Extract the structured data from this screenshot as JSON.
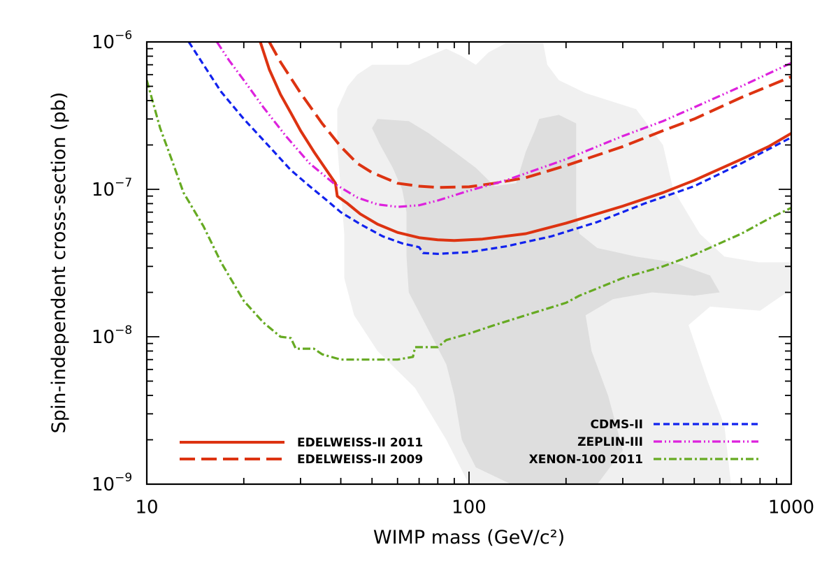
{
  "chart_data": {
    "type": "line",
    "title": "",
    "xlabel": "WIMP mass (GeV/c²)",
    "ylabel": "Spin-independent cross-section (pb)",
    "xscale": "log",
    "yscale": "log",
    "xlim": [
      10,
      1000
    ],
    "ylim": [
      1e-09,
      1e-06
    ],
    "x_ticks": [
      {
        "value": 10,
        "label": "10"
      },
      {
        "value": 100,
        "label": "100"
      },
      {
        "value": 1000,
        "label": "1000"
      }
    ],
    "y_ticks": [
      {
        "value": 1e-09,
        "base": "10",
        "exp": "−9"
      },
      {
        "value": 1e-08,
        "base": "10",
        "exp": "−8"
      },
      {
        "value": 1e-07,
        "base": "10",
        "exp": "−7"
      },
      {
        "value": 1e-06,
        "base": "10",
        "exp": "−6"
      }
    ],
    "regions": [
      {
        "name": "outer-contour",
        "color": "#f0f0f0",
        "points": [
          [
            50,
            7e-07
          ],
          [
            45,
            6e-07
          ],
          [
            42,
            5e-07
          ],
          [
            39,
            3.5e-07
          ],
          [
            39,
            2e-07
          ],
          [
            40,
            1e-07
          ],
          [
            41,
            5e-08
          ],
          [
            41,
            2.5e-08
          ],
          [
            44,
            1.4e-08
          ],
          [
            52,
            8e-09
          ],
          [
            68,
            4.5e-09
          ],
          [
            85,
            2e-09
          ],
          [
            100,
            1e-09
          ],
          [
            650,
            1e-09
          ],
          [
            620,
            2.5e-09
          ],
          [
            550,
            5e-09
          ],
          [
            480,
            1.2e-08
          ],
          [
            560,
            1.6e-08
          ],
          [
            800,
            1.5e-08
          ],
          [
            1000,
            2.1e-08
          ],
          [
            1000,
            3.2e-08
          ],
          [
            790,
            3.2e-08
          ],
          [
            620,
            3.5e-08
          ],
          [
            520,
            5e-08
          ],
          [
            430,
            1e-07
          ],
          [
            400,
            2e-07
          ],
          [
            330,
            3.5e-07
          ],
          [
            230,
            4.5e-07
          ],
          [
            190,
            5.5e-07
          ],
          [
            175,
            7e-07
          ],
          [
            170,
            9.8e-07
          ],
          [
            130,
            9.8e-07
          ],
          [
            115,
            8.5e-07
          ],
          [
            105,
            7e-07
          ],
          [
            95,
            8e-07
          ],
          [
            85,
            9e-07
          ],
          [
            75,
            8e-07
          ],
          [
            65,
            7e-07
          ]
        ]
      },
      {
        "name": "inner-contour",
        "color": "#dedede",
        "points": [
          [
            52,
            3e-07
          ],
          [
            50,
            2.6e-07
          ],
          [
            53,
            2e-07
          ],
          [
            58,
            1.4e-07
          ],
          [
            62,
            1e-07
          ],
          [
            64,
            7e-08
          ],
          [
            64,
            3.5e-08
          ],
          [
            65,
            2e-08
          ],
          [
            75,
            1.1e-08
          ],
          [
            85,
            6.5e-09
          ],
          [
            90,
            4e-09
          ],
          [
            95,
            2e-09
          ],
          [
            105,
            1.3e-09
          ],
          [
            135,
            1e-09
          ],
          [
            250,
            1e-09
          ],
          [
            300,
            1.7e-09
          ],
          [
            270,
            4e-09
          ],
          [
            240,
            8e-09
          ],
          [
            230,
            1.4e-08
          ],
          [
            280,
            1.8e-08
          ],
          [
            370,
            2e-08
          ],
          [
            500,
            1.9e-08
          ],
          [
            600,
            2e-08
          ],
          [
            560,
            2.6e-08
          ],
          [
            430,
            3.2e-08
          ],
          [
            330,
            3.5e-08
          ],
          [
            250,
            4e-08
          ],
          [
            220,
            5e-08
          ],
          [
            215,
            7e-08
          ],
          [
            215,
            1.2e-07
          ],
          [
            215,
            2e-07
          ],
          [
            215,
            2.8e-07
          ],
          [
            190,
            3.2e-07
          ],
          [
            165,
            3e-07
          ],
          [
            160,
            2.5e-07
          ],
          [
            150,
            1.8e-07
          ],
          [
            140,
            1.1e-07
          ],
          [
            120,
            1.05e-07
          ],
          [
            105,
            1.4e-07
          ],
          [
            90,
            1.8e-07
          ],
          [
            75,
            2.4e-07
          ],
          [
            65,
            2.9e-07
          ]
        ]
      }
    ],
    "series": [
      {
        "name": "EDELWEISS-II 2011",
        "color": "#dd3311",
        "dash": "solid",
        "legend_column": "left",
        "points": [
          [
            22.5,
            1e-06
          ],
          [
            24,
            6.5e-07
          ],
          [
            26,
            4.4e-07
          ],
          [
            28,
            3.3e-07
          ],
          [
            30,
            2.5e-07
          ],
          [
            33,
            1.8e-07
          ],
          [
            37,
            1.25e-07
          ],
          [
            38.5,
            1.1e-07
          ],
          [
            39,
            9e-08
          ],
          [
            42,
            8e-08
          ],
          [
            46,
            6.8e-08
          ],
          [
            52,
            5.8e-08
          ],
          [
            60,
            5.1e-08
          ],
          [
            70,
            4.7e-08
          ],
          [
            80,
            4.55e-08
          ],
          [
            90,
            4.5e-08
          ],
          [
            110,
            4.6e-08
          ],
          [
            150,
            5e-08
          ],
          [
            200,
            5.9e-08
          ],
          [
            300,
            7.7e-08
          ],
          [
            400,
            9.5e-08
          ],
          [
            500,
            1.15e-07
          ],
          [
            700,
            1.6e-07
          ],
          [
            850,
            1.95e-07
          ],
          [
            1000,
            2.4e-07
          ]
        ]
      },
      {
        "name": "EDELWEISS-II 2009",
        "color": "#dd3311",
        "dash": "dashed",
        "legend_column": "left",
        "points": [
          [
            24,
            1e-06
          ],
          [
            26,
            7.3e-07
          ],
          [
            30,
            4.5e-07
          ],
          [
            35,
            2.8e-07
          ],
          [
            40,
            1.95e-07
          ],
          [
            45,
            1.5e-07
          ],
          [
            50,
            1.3e-07
          ],
          [
            60,
            1.1e-07
          ],
          [
            70,
            1.05e-07
          ],
          [
            80,
            1.03e-07
          ],
          [
            100,
            1.04e-07
          ],
          [
            120,
            1.1e-07
          ],
          [
            150,
            1.2e-07
          ],
          [
            200,
            1.45e-07
          ],
          [
            300,
            1.95e-07
          ],
          [
            400,
            2.5e-07
          ],
          [
            500,
            3e-07
          ],
          [
            700,
            4.2e-07
          ],
          [
            1000,
            5.8e-07
          ]
        ]
      },
      {
        "name": "CDMS-II",
        "color": "#1122ee",
        "dash": "short-dashed",
        "legend_column": "right",
        "points": [
          [
            13.5,
            1e-06
          ],
          [
            15,
            7e-07
          ],
          [
            17,
            4.6e-07
          ],
          [
            20,
            3e-07
          ],
          [
            24,
            1.95e-07
          ],
          [
            28,
            1.35e-07
          ],
          [
            32,
            1.05e-07
          ],
          [
            36,
            8.5e-08
          ],
          [
            40,
            7e-08
          ],
          [
            46,
            5.8e-08
          ],
          [
            54,
            4.8e-08
          ],
          [
            62,
            4.3e-08
          ],
          [
            70,
            4.05e-08
          ],
          [
            72,
            3.7e-08
          ],
          [
            80,
            3.65e-08
          ],
          [
            100,
            3.75e-08
          ],
          [
            130,
            4.1e-08
          ],
          [
            180,
            4.8e-08
          ],
          [
            250,
            6e-08
          ],
          [
            350,
            8e-08
          ],
          [
            500,
            1.05e-07
          ],
          [
            700,
            1.5e-07
          ],
          [
            1000,
            2.25e-07
          ]
        ]
      },
      {
        "name": "ZEPLIN-III",
        "color": "#dd22dd",
        "dash": "dash-dot-dot",
        "legend_column": "right",
        "points": [
          [
            16.5,
            1e-06
          ],
          [
            18,
            7.5e-07
          ],
          [
            20,
            5.5e-07
          ],
          [
            23,
            3.6e-07
          ],
          [
            27,
            2.3e-07
          ],
          [
            32,
            1.5e-07
          ],
          [
            38,
            1.1e-07
          ],
          [
            45,
            8.8e-08
          ],
          [
            52,
            7.9e-08
          ],
          [
            60,
            7.6e-08
          ],
          [
            70,
            7.8e-08
          ],
          [
            80,
            8.4e-08
          ],
          [
            100,
            9.8e-08
          ],
          [
            130,
            1.15e-07
          ],
          [
            200,
            1.6e-07
          ],
          [
            300,
            2.3e-07
          ],
          [
            400,
            2.9e-07
          ],
          [
            500,
            3.6e-07
          ],
          [
            700,
            5e-07
          ],
          [
            1000,
            7.2e-07
          ]
        ]
      },
      {
        "name": "XENON-100 2011",
        "color": "#66aa22",
        "dash": "dash-dot",
        "legend_column": "right",
        "points": [
          [
            10,
            5.5e-07
          ],
          [
            11,
            2.6e-07
          ],
          [
            12,
            1.55e-07
          ],
          [
            13,
            9.5e-08
          ],
          [
            15,
            5.6e-08
          ],
          [
            17,
            3.2e-08
          ],
          [
            20,
            1.75e-08
          ],
          [
            23,
            1.25e-08
          ],
          [
            26,
            1e-08
          ],
          [
            28,
            9.8e-09
          ],
          [
            29,
            8.3e-09
          ],
          [
            33,
            8.3e-09
          ],
          [
            35,
            7.6e-09
          ],
          [
            40,
            7e-09
          ],
          [
            50,
            7e-09
          ],
          [
            60,
            7e-09
          ],
          [
            67,
            7.3e-09
          ],
          [
            68,
            8.5e-09
          ],
          [
            80,
            8.5e-09
          ],
          [
            85,
            9.5e-09
          ],
          [
            100,
            1.05e-08
          ],
          [
            120,
            1.2e-08
          ],
          [
            150,
            1.4e-08
          ],
          [
            200,
            1.7e-08
          ],
          [
            220,
            1.9e-08
          ],
          [
            300,
            2.5e-08
          ],
          [
            400,
            3e-08
          ],
          [
            500,
            3.6e-08
          ],
          [
            600,
            4.3e-08
          ],
          [
            700,
            5e-08
          ],
          [
            850,
            6.3e-08
          ],
          [
            1000,
            7.5e-08
          ]
        ]
      }
    ]
  }
}
